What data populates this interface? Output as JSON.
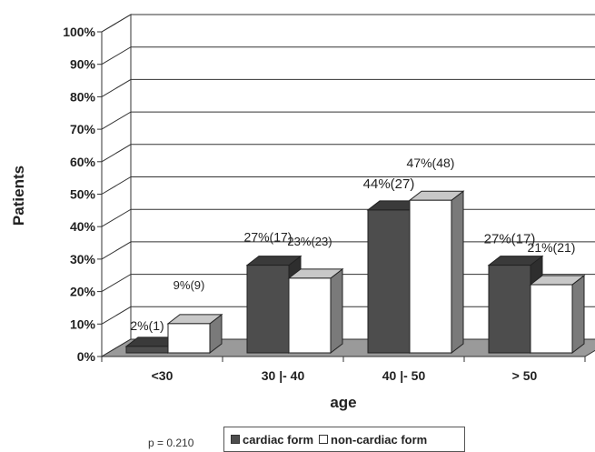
{
  "chart_data": {
    "type": "bar",
    "style": "3d-clustered",
    "xlabel": "age",
    "ylabel": "Patients",
    "ylim": [
      0,
      100
    ],
    "ytick_step": 10,
    "ytick_suffix": "%",
    "grid": true,
    "categories": [
      "<30",
      "30 |- 40",
      "40 |- 50",
      "> 50"
    ],
    "series": [
      {
        "name": "cardiac form",
        "color": "#4d4d4d",
        "values": [
          2,
          27,
          44,
          27
        ],
        "labels": [
          "2%(1)",
          "27%(17)",
          "44%(27)",
          "27%(17)"
        ]
      },
      {
        "name": "non-cardiac form",
        "color": "#ffffff",
        "values": [
          9,
          23,
          47,
          21
        ],
        "labels": [
          "9%(9)",
          "23%(23)",
          "47%(48)",
          "21%(21)"
        ]
      }
    ],
    "legend": "bottom",
    "annotation": "p = 0.210"
  }
}
